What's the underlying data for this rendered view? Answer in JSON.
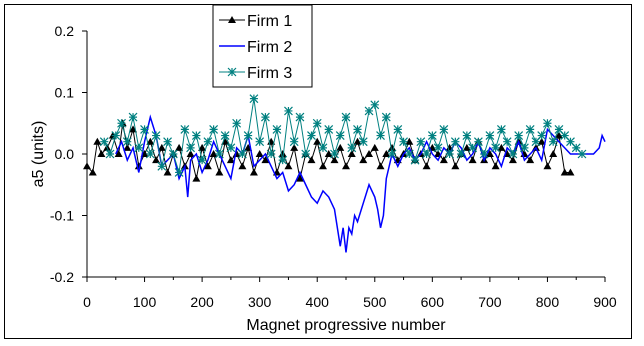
{
  "chart_data": {
    "type": "line",
    "title": "",
    "xlabel": "Magnet progressive number",
    "ylabel": "a5 (units)",
    "xlim": [
      0,
      900
    ],
    "ylim": [
      -0.2,
      0.2
    ],
    "x_ticks": [
      "0",
      "100",
      "200",
      "300",
      "400",
      "500",
      "600",
      "700",
      "800",
      "900"
    ],
    "y_ticks": [
      "-0.2",
      "-0.1",
      "0.0",
      "0.1",
      "0.2"
    ],
    "grid": false,
    "legend_position": "top-center",
    "series": [
      {
        "name": "Firm 1",
        "color": "#000000",
        "marker": "triangle",
        "x": [
          0,
          10,
          18,
          25,
          35,
          45,
          55,
          62,
          70,
          80,
          90,
          100,
          110,
          120,
          130,
          140,
          150,
          160,
          170,
          180,
          190,
          200,
          210,
          220,
          230,
          240,
          250,
          260,
          270,
          280,
          290,
          300,
          310,
          320,
          330,
          340,
          350,
          360,
          370,
          380,
          390,
          400,
          410,
          420,
          430,
          440,
          450,
          460,
          470,
          480,
          490,
          500,
          510,
          520,
          530,
          540,
          550,
          560,
          570,
          580,
          590,
          600,
          610,
          620,
          630,
          640,
          650,
          660,
          670,
          680,
          690,
          700,
          710,
          720,
          730,
          740,
          750,
          760,
          770,
          780,
          790,
          800,
          810,
          820,
          830,
          840
        ],
        "y": [
          -0.02,
          -0.03,
          0.02,
          0.0,
          0.01,
          0.03,
          0.0,
          0.05,
          0.01,
          0.04,
          -0.02,
          0.0,
          0.02,
          -0.01,
          0.01,
          -0.03,
          0.0,
          0.01,
          -0.02,
          0.0,
          -0.04,
          0.01,
          -0.02,
          0.0,
          -0.03,
          0.02,
          -0.01,
          0.0,
          -0.02,
          0.01,
          -0.03,
          0.0,
          -0.01,
          0.02,
          -0.03,
          0.0,
          -0.02,
          0.01,
          -0.04,
          0.0,
          -0.01,
          0.02,
          -0.02,
          0.0,
          -0.01,
          0.01,
          -0.02,
          0.0,
          0.02,
          -0.01,
          0.0,
          0.01,
          -0.02,
          0.0,
          0.01,
          -0.01,
          0.0,
          0.02,
          -0.01,
          0.0,
          -0.02,
          0.01,
          0.0,
          -0.01,
          0.01,
          -0.02,
          0.0,
          0.01,
          -0.01,
          0.02,
          -0.01,
          0.0,
          -0.02,
          0.01,
          0.0,
          -0.01,
          0.02,
          0.0,
          -0.01,
          0.01,
          0.02,
          -0.02,
          0.0,
          0.03,
          -0.03,
          -0.03
        ]
      },
      {
        "name": "Firm 2",
        "color": "#0000ff",
        "marker": "none",
        "x": [
          50,
          60,
          70,
          80,
          90,
          100,
          110,
          120,
          130,
          140,
          150,
          160,
          170,
          175,
          180,
          190,
          200,
          210,
          220,
          230,
          240,
          250,
          260,
          270,
          280,
          290,
          300,
          310,
          320,
          330,
          340,
          350,
          360,
          370,
          380,
          390,
          400,
          410,
          420,
          430,
          440,
          445,
          450,
          455,
          460,
          465,
          470,
          480,
          490,
          500,
          505,
          510,
          515,
          520,
          530,
          540,
          550,
          560,
          570,
          580,
          590,
          600,
          610,
          620,
          630,
          640,
          650,
          660,
          670,
          680,
          690,
          700,
          710,
          720,
          730,
          740,
          750,
          760,
          770,
          780,
          790,
          800,
          810,
          820,
          830,
          840,
          850,
          860,
          870,
          880,
          890,
          895,
          900
        ],
        "y": [
          0.0,
          0.02,
          -0.01,
          0.01,
          -0.03,
          0.02,
          0.06,
          0.03,
          -0.02,
          -0.01,
          0.0,
          -0.04,
          -0.02,
          -0.07,
          -0.01,
          0.0,
          -0.03,
          -0.01,
          0.02,
          0.0,
          -0.02,
          -0.04,
          0.01,
          0.0,
          0.03,
          -0.02,
          -0.01,
          0.0,
          -0.02,
          -0.04,
          -0.03,
          -0.06,
          -0.05,
          -0.03,
          -0.05,
          -0.07,
          -0.08,
          -0.06,
          -0.07,
          -0.09,
          -0.15,
          -0.12,
          -0.16,
          -0.12,
          -0.13,
          -0.1,
          -0.11,
          -0.08,
          -0.05,
          -0.07,
          -0.09,
          -0.12,
          -0.1,
          -0.04,
          0.0,
          -0.02,
          0.0,
          0.01,
          -0.01,
          0.0,
          0.02,
          0.0,
          -0.01,
          0.01,
          0.0,
          0.02,
          0.01,
          -0.01,
          0.0,
          0.02,
          -0.01,
          0.01,
          0.0,
          -0.02,
          0.01,
          0.0,
          0.02,
          -0.01,
          0.0,
          0.01,
          -0.01,
          0.04,
          0.03,
          0.02,
          0.01,
          0.0,
          0.0,
          0.0,
          0.0,
          0.0,
          0.01,
          0.03,
          0.02
        ]
      },
      {
        "name": "Firm 3",
        "color": "#008080",
        "marker": "asterisk",
        "x": [
          30,
          40,
          50,
          60,
          70,
          80,
          90,
          100,
          110,
          120,
          130,
          140,
          150,
          160,
          170,
          180,
          190,
          200,
          210,
          220,
          230,
          240,
          250,
          260,
          270,
          280,
          290,
          300,
          310,
          320,
          330,
          340,
          350,
          360,
          370,
          380,
          390,
          400,
          410,
          420,
          430,
          440,
          450,
          460,
          470,
          480,
          490,
          500,
          510,
          520,
          530,
          540,
          550,
          560,
          570,
          580,
          590,
          600,
          610,
          620,
          630,
          640,
          650,
          660,
          670,
          680,
          690,
          700,
          710,
          720,
          730,
          740,
          750,
          760,
          770,
          780,
          790,
          800,
          810,
          820,
          830,
          840,
          850,
          860
        ],
        "y": [
          0.02,
          0.0,
          0.03,
          0.05,
          0.02,
          0.06,
          0.01,
          0.04,
          0.0,
          0.03,
          -0.02,
          0.02,
          0.0,
          -0.03,
          0.04,
          0.01,
          0.03,
          -0.01,
          0.02,
          0.04,
          0.0,
          0.03,
          0.01,
          0.05,
          0.0,
          0.03,
          0.09,
          0.02,
          0.06,
          0.0,
          0.04,
          -0.01,
          0.07,
          0.02,
          0.06,
          0.0,
          0.03,
          0.05,
          0.01,
          0.04,
          0.0,
          0.03,
          0.06,
          0.01,
          0.04,
          0.02,
          0.07,
          0.08,
          0.03,
          0.06,
          0.0,
          0.04,
          0.02,
          0.0,
          -0.01,
          0.02,
          0.0,
          0.03,
          0.01,
          0.04,
          0.0,
          0.02,
          0.0,
          0.03,
          0.01,
          0.02,
          0.0,
          0.03,
          0.01,
          0.04,
          0.02,
          0.0,
          0.03,
          0.01,
          0.04,
          0.02,
          0.03,
          0.05,
          0.02,
          0.04,
          0.03,
          0.02,
          0.01,
          0.0
        ]
      }
    ]
  }
}
